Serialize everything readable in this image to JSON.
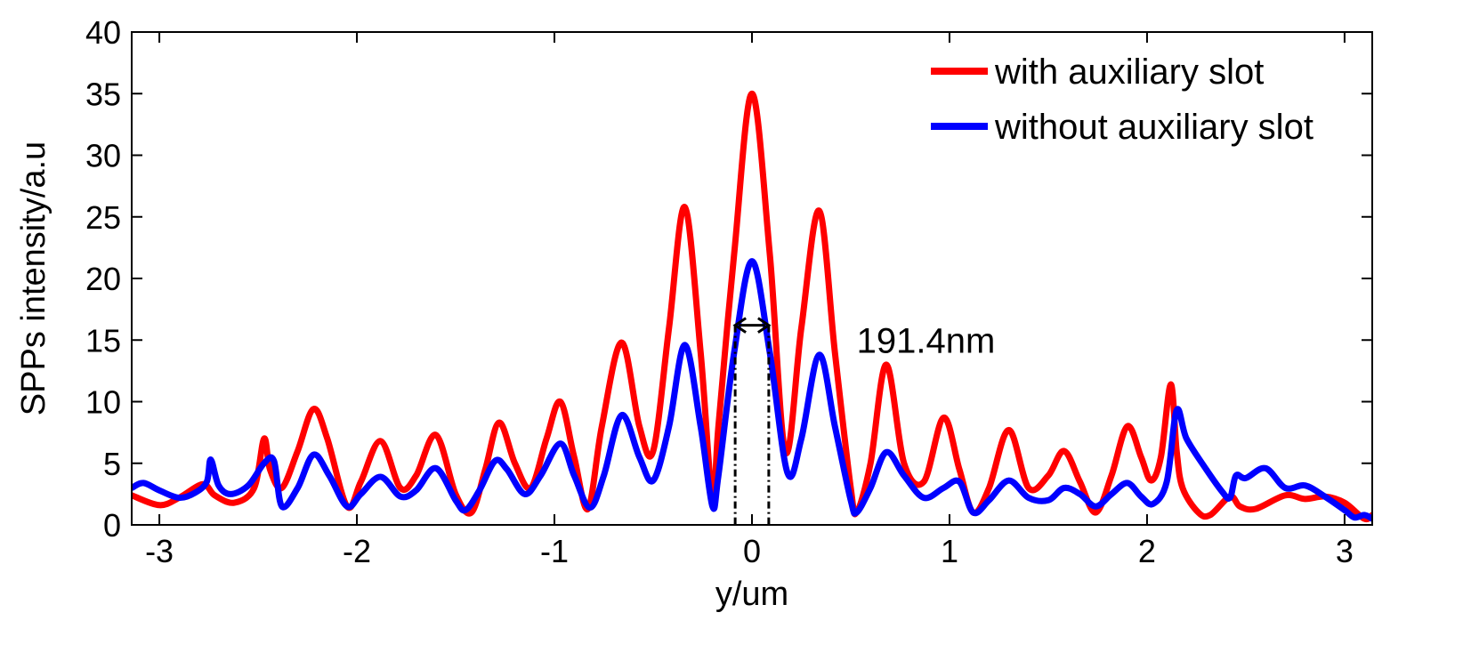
{
  "chart_data": {
    "type": "line",
    "title": "",
    "xlabel": "y/um",
    "ylabel": "SPPs intensity/a.u",
    "xlim": [
      -3.14,
      3.14
    ],
    "ylim": [
      0,
      40
    ],
    "x_ticks": [
      -3,
      -2,
      -1,
      0,
      1,
      2,
      3
    ],
    "x_tick_labels": [
      "-3",
      "-2",
      "-1",
      "0",
      "1",
      "2",
      "3"
    ],
    "y_ticks": [
      0,
      5,
      10,
      15,
      20,
      25,
      30,
      35,
      40
    ],
    "y_tick_labels": [
      "0",
      "5",
      "10",
      "15",
      "20",
      "25",
      "30",
      "35",
      "40"
    ],
    "grid": false,
    "legend_position": "top-right",
    "series": [
      {
        "name": "with auxiliary slot",
        "color": "#ff0000",
        "x": [
          -3.14,
          -3.0,
          -2.9,
          -2.78,
          -2.72,
          -2.62,
          -2.52,
          -2.47,
          -2.44,
          -2.38,
          -2.3,
          -2.22,
          -2.15,
          -2.05,
          -1.98,
          -1.88,
          -1.78,
          -1.7,
          -1.6,
          -1.5,
          -1.42,
          -1.35,
          -1.28,
          -1.2,
          -1.12,
          -1.04,
          -0.97,
          -0.9,
          -0.83,
          -0.76,
          -0.66,
          -0.57,
          -0.5,
          -0.42,
          -0.34,
          -0.26,
          -0.2,
          -0.17,
          -0.09,
          0.0,
          0.09,
          0.17,
          0.25,
          0.34,
          0.42,
          0.5,
          0.53,
          0.6,
          0.68,
          0.77,
          0.87,
          0.97,
          1.05,
          1.12,
          1.2,
          1.3,
          1.4,
          1.5,
          1.58,
          1.66,
          1.74,
          1.82,
          1.9,
          1.97,
          2.02,
          2.07,
          2.12,
          2.15,
          2.18,
          2.26,
          2.32,
          2.42,
          2.47,
          2.55,
          2.7,
          2.8,
          2.9,
          3.0,
          3.1,
          3.14
        ],
        "y": [
          2.4,
          1.6,
          2.2,
          3.3,
          2.4,
          1.8,
          3.0,
          7.0,
          4.5,
          3.0,
          6.0,
          9.4,
          7.0,
          1.5,
          3.5,
          6.8,
          3.0,
          4.0,
          7.3,
          2.5,
          1.0,
          4.5,
          8.3,
          5.0,
          3.0,
          7.0,
          10.0,
          5.5,
          1.3,
          8.0,
          14.8,
          8.0,
          6.0,
          16.0,
          25.8,
          14.0,
          2.0,
          8.0,
          22.0,
          35.0,
          22.0,
          5.9,
          16.0,
          25.5,
          14.0,
          3.0,
          1.0,
          5.0,
          13.0,
          5.0,
          3.5,
          8.7,
          4.5,
          1.0,
          3.0,
          7.7,
          3.0,
          4.0,
          6.0,
          3.5,
          1.0,
          4.0,
          8.0,
          5.5,
          3.6,
          5.5,
          11.4,
          6.0,
          3.0,
          1.0,
          0.8,
          2.3,
          1.5,
          1.3,
          2.4,
          2.1,
          2.3,
          1.8,
          0.5,
          0.8
        ]
      },
      {
        "name": "without auxiliary slot",
        "color": "#0000ff",
        "x": [
          -3.14,
          -3.08,
          -3.0,
          -2.9,
          -2.82,
          -2.76,
          -2.74,
          -2.7,
          -2.64,
          -2.55,
          -2.47,
          -2.42,
          -2.38,
          -2.3,
          -2.22,
          -2.14,
          -2.05,
          -1.98,
          -1.88,
          -1.78,
          -1.7,
          -1.6,
          -1.5,
          -1.45,
          -1.38,
          -1.3,
          -1.24,
          -1.15,
          -1.07,
          -0.97,
          -0.9,
          -0.82,
          -0.75,
          -0.66,
          -0.57,
          -0.5,
          -0.42,
          -0.34,
          -0.26,
          -0.2,
          -0.17,
          -0.09,
          0.0,
          0.09,
          0.18,
          0.25,
          0.34,
          0.42,
          0.5,
          0.53,
          0.6,
          0.68,
          0.77,
          0.87,
          0.97,
          1.05,
          1.12,
          1.2,
          1.3,
          1.4,
          1.5,
          1.58,
          1.66,
          1.74,
          1.82,
          1.9,
          1.97,
          2.03,
          2.1,
          2.15,
          2.2,
          2.3,
          2.38,
          2.42,
          2.45,
          2.5,
          2.6,
          2.7,
          2.8,
          2.9,
          3.0,
          3.05,
          3.1,
          3.14
        ],
        "y": [
          3.0,
          3.4,
          2.8,
          2.2,
          2.6,
          3.5,
          5.3,
          3.2,
          2.5,
          3.2,
          5.0,
          5.2,
          1.5,
          3.0,
          5.7,
          4.0,
          1.5,
          2.5,
          3.9,
          2.3,
          2.8,
          4.6,
          2.0,
          1.2,
          2.8,
          5.2,
          4.5,
          2.5,
          4.0,
          6.6,
          4.0,
          1.4,
          4.0,
          8.9,
          5.5,
          3.6,
          8.0,
          14.6,
          8.0,
          1.5,
          4.0,
          14.0,
          21.4,
          14.0,
          4.2,
          7.0,
          13.8,
          8.0,
          2.0,
          1.0,
          3.0,
          5.9,
          4.0,
          2.2,
          3.0,
          3.5,
          1.0,
          2.0,
          3.6,
          2.2,
          2.0,
          3.0,
          2.5,
          1.5,
          2.5,
          3.4,
          2.3,
          1.7,
          3.5,
          9.3,
          7.0,
          4.5,
          2.7,
          2.2,
          4.0,
          3.8,
          4.6,
          3.0,
          3.2,
          2.3,
          1.2,
          0.6,
          0.8,
          0.5
        ]
      }
    ],
    "annotations": [
      {
        "text": "191.4nm",
        "arrow_x": [
          -0.085,
          0.085
        ],
        "arrow_y": 16.2,
        "text_x": 0.53,
        "text_y": 15.0,
        "guide_lines_x": [
          -0.085,
          0.085
        ]
      }
    ]
  }
}
